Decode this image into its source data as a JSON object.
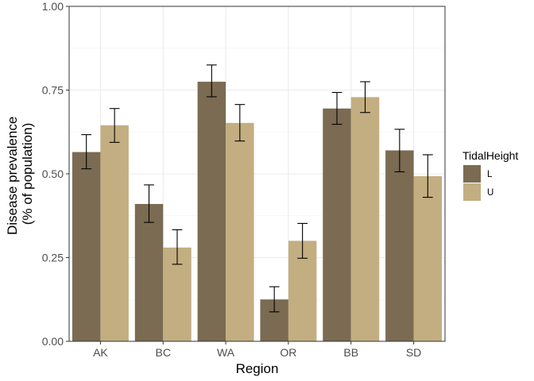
{
  "chart_data": {
    "type": "bar",
    "title": "",
    "xlabel": "Region",
    "ylabel_lines": [
      "Disease prevalence",
      "(% of population)"
    ],
    "categories": [
      "AK",
      "BC",
      "WA",
      "OR",
      "BB",
      "SD"
    ],
    "ylim": [
      0,
      1
    ],
    "yticks": [
      0,
      0.25,
      0.5,
      0.75,
      1
    ],
    "ytick_labels": [
      "0.00",
      "0.25",
      "0.50",
      "0.75",
      "1.00"
    ],
    "grid": true,
    "legend": {
      "title": "TidalHeight",
      "position": "right"
    },
    "series": [
      {
        "name": "L",
        "color": "#7a6b52",
        "values": [
          0.565,
          0.41,
          0.775,
          0.125,
          0.695,
          0.57
        ],
        "error_low": [
          0.515,
          0.355,
          0.73,
          0.088,
          0.648,
          0.506
        ],
        "error_high": [
          0.617,
          0.467,
          0.825,
          0.163,
          0.743,
          0.633
        ]
      },
      {
        "name": "U",
        "color": "#c3ae81",
        "values": [
          0.645,
          0.28,
          0.652,
          0.3,
          0.729,
          0.493
        ],
        "error_low": [
          0.594,
          0.23,
          0.598,
          0.248,
          0.683,
          0.43
        ],
        "error_high": [
          0.695,
          0.333,
          0.707,
          0.352,
          0.775,
          0.557
        ]
      }
    ]
  }
}
